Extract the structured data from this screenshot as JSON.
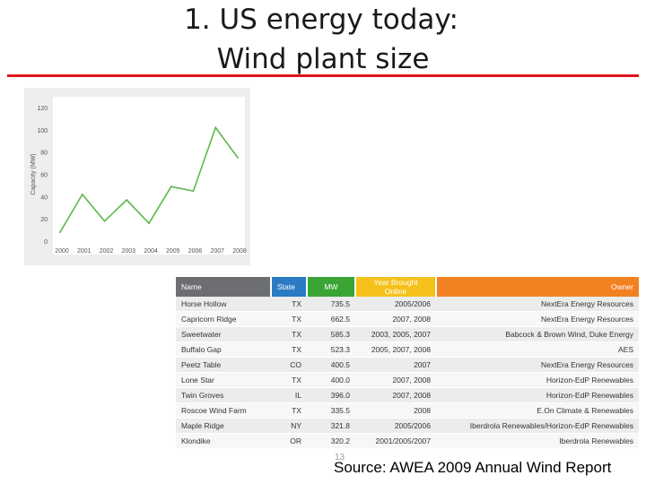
{
  "slide": {
    "title_line1": "1.   US energy today:",
    "title_line2": "Wind plant size",
    "page_number": "13",
    "source": "Source:  AWEA 2009 Annual Wind Report",
    "accent_color": "#e0141e"
  },
  "chart_data": {
    "type": "line",
    "title": "",
    "xlabel": "",
    "ylabel": "Capacity (MW)",
    "ylim": [
      0,
      120
    ],
    "yticks": [
      "0",
      "20",
      "40",
      "60",
      "80",
      "100",
      "120"
    ],
    "categories": [
      "2000",
      "2001",
      "2002",
      "2003",
      "2004",
      "2005",
      "2006",
      "2007",
      "2008"
    ],
    "series": [
      {
        "values": [
          8,
          42,
          18,
          37,
          16,
          49,
          45,
          102,
          75
        ],
        "color": "#5cb84a"
      }
    ],
    "grid": false,
    "legend": "none"
  },
  "table": {
    "headers": {
      "name": "Name",
      "state": "State",
      "mw": "MW",
      "year": "Year Brought Online",
      "owner": "Owner"
    },
    "header_colors": {
      "name": "#6d6e71",
      "state": "#2b7ac4",
      "mw": "#3aa535",
      "year": "#f6c11c",
      "owner": "#f28121"
    },
    "rows": [
      {
        "name": "Horse Hollow",
        "state": "TX",
        "mw": "735.5",
        "year": "2005/2006",
        "owner": "NextEra Energy Resources"
      },
      {
        "name": "Capricorn Ridge",
        "state": "TX",
        "mw": "662.5",
        "year": "2007, 2008",
        "owner": "NextEra Energy Resources"
      },
      {
        "name": "Sweetwater",
        "state": "TX",
        "mw": "585.3",
        "year": "2003, 2005, 2007",
        "owner": "Babcock & Brown Wind, Duke Energy"
      },
      {
        "name": "Buffalo Gap",
        "state": "TX",
        "mw": "523.3",
        "year": "2005, 2007, 2008",
        "owner": "AES"
      },
      {
        "name": "Peetz Table",
        "state": "CO",
        "mw": "400.5",
        "year": "2007",
        "owner": "NextEra Energy Resources"
      },
      {
        "name": "Lone Star",
        "state": "TX",
        "mw": "400.0",
        "year": "2007, 2008",
        "owner": "Horizon-EdP Renewables"
      },
      {
        "name": "Twin Groves",
        "state": "IL",
        "mw": "396.0",
        "year": "2007, 2008",
        "owner": "Horizon-EdP Renewables"
      },
      {
        "name": "Roscoe Wind Farm",
        "state": "TX",
        "mw": "335.5",
        "year": "2008",
        "owner": "E.On Climate & Renewables"
      },
      {
        "name": "Maple Ridge",
        "state": "NY",
        "mw": "321.8",
        "year": "2005/2006",
        "owner": "Iberdrola Renewables/Horizon-EdP Renewables"
      },
      {
        "name": "Klondike",
        "state": "OR",
        "mw": "320.2",
        "year": "2001/2005/2007",
        "owner": "Iberdrola Renewables"
      }
    ]
  }
}
